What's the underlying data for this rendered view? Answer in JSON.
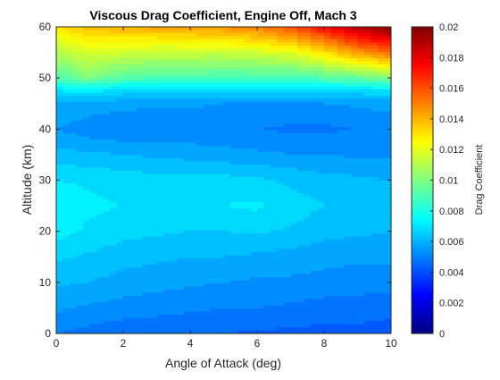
{
  "chart_data": {
    "type": "heatmap",
    "title": "Viscous Drag Coefficient, Engine Off, Mach 3",
    "xlabel": "Angle of Attack (deg)",
    "ylabel": "Altitude (km)",
    "colorbar_label": "Drag Coefficient",
    "xlim": [
      0,
      10
    ],
    "ylim": [
      0,
      60
    ],
    "clim": [
      0,
      0.02
    ],
    "colormap": "jet",
    "x_ticks": [
      0,
      2,
      4,
      6,
      8,
      10
    ],
    "y_ticks": [
      0,
      10,
      20,
      30,
      40,
      50,
      60
    ],
    "colorbar_ticks": [
      0,
      0.002,
      0.004,
      0.006,
      0.008,
      0.01,
      0.012,
      0.014,
      0.016,
      0.018,
      0.02
    ],
    "x": [
      0,
      1,
      2,
      3,
      4,
      5,
      6,
      7,
      8,
      9,
      10
    ],
    "y": [
      0,
      5,
      10,
      15,
      20,
      25,
      30,
      35,
      40,
      45,
      47.5,
      50,
      55,
      60
    ],
    "z": [
      [
        0.005,
        0.0048,
        0.0046,
        0.0046,
        0.0045,
        0.0045,
        0.0044,
        0.0044,
        0.0043,
        0.0043,
        0.0042
      ],
      [
        0.0056,
        0.0054,
        0.0053,
        0.0052,
        0.0051,
        0.005,
        0.005,
        0.0049,
        0.0048,
        0.0048,
        0.0047
      ],
      [
        0.0061,
        0.006,
        0.0058,
        0.0057,
        0.0056,
        0.0055,
        0.0054,
        0.0054,
        0.0053,
        0.0052,
        0.0052
      ],
      [
        0.0066,
        0.0064,
        0.0062,
        0.0061,
        0.006,
        0.006,
        0.0059,
        0.0058,
        0.0057,
        0.0056,
        0.0056
      ],
      [
        0.0072,
        0.0069,
        0.0067,
        0.0066,
        0.0065,
        0.0065,
        0.0066,
        0.0064,
        0.0062,
        0.0061,
        0.006
      ],
      [
        0.0074,
        0.0071,
        0.007,
        0.0069,
        0.0069,
        0.007,
        0.0071,
        0.0068,
        0.0065,
        0.0063,
        0.0062
      ],
      [
        0.007,
        0.0069,
        0.0068,
        0.0067,
        0.0067,
        0.0067,
        0.0066,
        0.0064,
        0.0062,
        0.0061,
        0.006
      ],
      [
        0.0062,
        0.0061,
        0.006,
        0.0059,
        0.0058,
        0.0057,
        0.0056,
        0.0055,
        0.0055,
        0.0054,
        0.0054
      ],
      [
        0.0055,
        0.0052,
        0.005,
        0.005,
        0.0051,
        0.0051,
        0.005,
        0.0049,
        0.0049,
        0.005,
        0.0051
      ],
      [
        0.006,
        0.0058,
        0.0057,
        0.0056,
        0.0056,
        0.0055,
        0.0055,
        0.0055,
        0.0055,
        0.0056,
        0.0057
      ],
      [
        0.007,
        0.0072,
        0.0068,
        0.0067,
        0.0066,
        0.0066,
        0.0066,
        0.0066,
        0.0067,
        0.0068,
        0.0069
      ],
      [
        0.009,
        0.01,
        0.0092,
        0.009,
        0.009,
        0.0089,
        0.0089,
        0.0088,
        0.0092,
        0.0095,
        0.01
      ],
      [
        0.011,
        0.0118,
        0.0116,
        0.0114,
        0.0114,
        0.0114,
        0.0116,
        0.012,
        0.013,
        0.0145,
        0.0155
      ],
      [
        0.013,
        0.0138,
        0.014,
        0.0142,
        0.0144,
        0.0146,
        0.015,
        0.016,
        0.0175,
        0.019,
        0.02
      ]
    ]
  }
}
